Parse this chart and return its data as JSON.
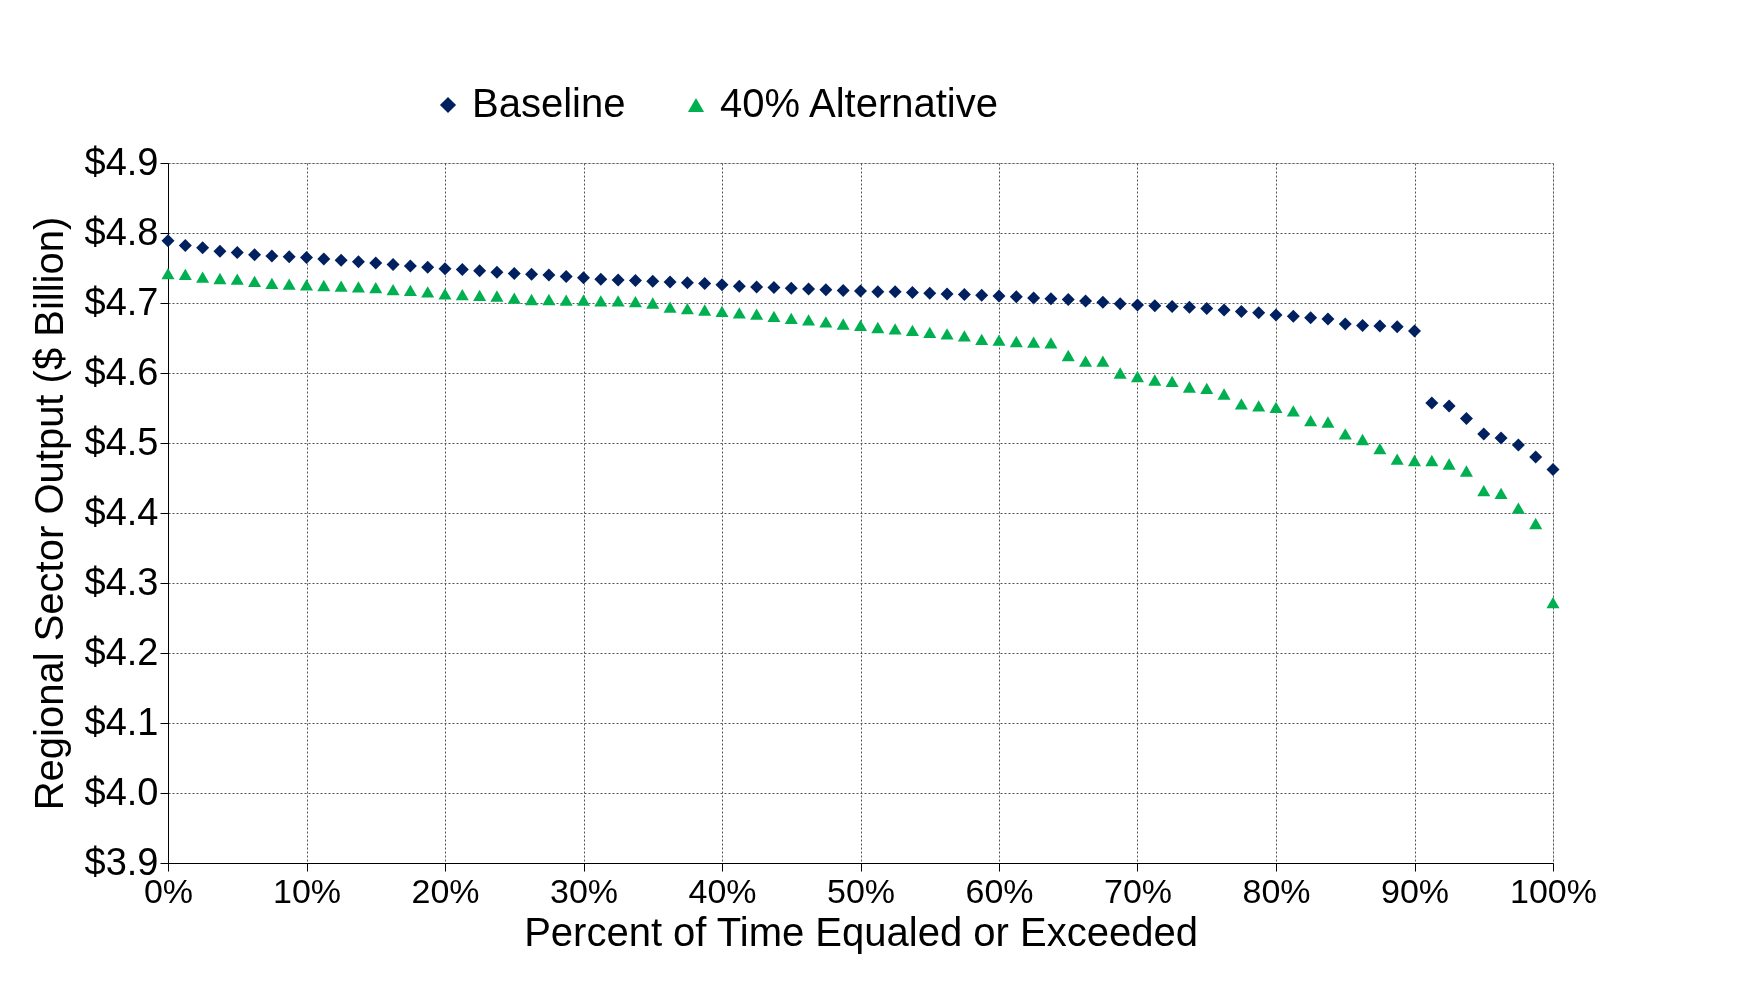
{
  "chart_data": {
    "type": "scatter",
    "xlabel": "Percent of Time Equaled or Exceeded",
    "ylabel": "Regional Sector Output ($ Billion)",
    "x": [
      0,
      1.25,
      2.5,
      3.75,
      5,
      6.25,
      7.5,
      8.75,
      10,
      11.25,
      12.5,
      13.75,
      15,
      16.25,
      17.5,
      18.75,
      20,
      21.25,
      22.5,
      23.75,
      25,
      26.25,
      27.5,
      28.75,
      30,
      31.25,
      32.5,
      33.75,
      35,
      36.25,
      37.5,
      38.75,
      40,
      41.25,
      42.5,
      43.75,
      45,
      46.25,
      47.5,
      48.75,
      50,
      51.25,
      52.5,
      53.75,
      55,
      56.25,
      57.5,
      58.75,
      60,
      61.25,
      62.5,
      63.75,
      65,
      66.25,
      67.5,
      68.75,
      70,
      71.25,
      72.5,
      73.75,
      75,
      76.25,
      77.5,
      78.75,
      80,
      81.25,
      82.5,
      83.75,
      85,
      86.25,
      87.5,
      88.75,
      90,
      91.25,
      92.5,
      93.75,
      95,
      96.25,
      97.5,
      98.75,
      100
    ],
    "series": [
      {
        "name": "Baseline",
        "color": "#002060",
        "marker": "diamond",
        "values": [
          4.789,
          4.782,
          4.779,
          4.774,
          4.772,
          4.769,
          4.767,
          4.766,
          4.765,
          4.763,
          4.761,
          4.759,
          4.757,
          4.755,
          4.753,
          4.751,
          4.749,
          4.748,
          4.746,
          4.744,
          4.742,
          4.741,
          4.74,
          4.738,
          4.736,
          4.734,
          4.733,
          4.732,
          4.731,
          4.73,
          4.729,
          4.728,
          4.726,
          4.724,
          4.723,
          4.722,
          4.721,
          4.72,
          4.719,
          4.718,
          4.717,
          4.716,
          4.716,
          4.715,
          4.714,
          4.713,
          4.712,
          4.711,
          4.71,
          4.709,
          4.707,
          4.706,
          4.705,
          4.703,
          4.701,
          4.699,
          4.697,
          4.696,
          4.695,
          4.694,
          4.692,
          4.69,
          4.688,
          4.686,
          4.683,
          4.681,
          4.679,
          4.677,
          4.67,
          4.668,
          4.667,
          4.666,
          4.66,
          4.557,
          4.553,
          4.535,
          4.513,
          4.507,
          4.497,
          4.48,
          4.462
        ]
      },
      {
        "name": "40% Alternative",
        "color": "#00b050",
        "marker": "triangle",
        "values": [
          4.742,
          4.741,
          4.737,
          4.735,
          4.734,
          4.731,
          4.728,
          4.727,
          4.726,
          4.725,
          4.724,
          4.723,
          4.722,
          4.719,
          4.718,
          4.716,
          4.713,
          4.712,
          4.711,
          4.71,
          4.707,
          4.705,
          4.705,
          4.704,
          4.704,
          4.703,
          4.703,
          4.702,
          4.7,
          4.694,
          4.692,
          4.69,
          4.688,
          4.686,
          4.684,
          4.681,
          4.678,
          4.676,
          4.673,
          4.67,
          4.668,
          4.665,
          4.663,
          4.661,
          4.658,
          4.656,
          4.653,
          4.648,
          4.647,
          4.645,
          4.644,
          4.643,
          4.625,
          4.617,
          4.617,
          4.6,
          4.595,
          4.59,
          4.588,
          4.58,
          4.578,
          4.57,
          4.556,
          4.553,
          4.551,
          4.546,
          4.532,
          4.53,
          4.513,
          4.505,
          4.492,
          4.477,
          4.475,
          4.475,
          4.47,
          4.46,
          4.432,
          4.428,
          4.407,
          4.385,
          4.272
        ]
      }
    ],
    "xlim": [
      0,
      100
    ],
    "xticks": [
      {
        "value": 0,
        "label": "0%"
      },
      {
        "value": 10,
        "label": "10%"
      },
      {
        "value": 20,
        "label": "20%"
      },
      {
        "value": 30,
        "label": "30%"
      },
      {
        "value": 40,
        "label": "40%"
      },
      {
        "value": 50,
        "label": "50%"
      },
      {
        "value": 60,
        "label": "60%"
      },
      {
        "value": 70,
        "label": "70%"
      },
      {
        "value": 80,
        "label": "80%"
      },
      {
        "value": 90,
        "label": "90%"
      },
      {
        "value": 100,
        "label": "100%"
      }
    ],
    "ylim": [
      3.9,
      4.9
    ],
    "yticks": [
      {
        "value": 3.9,
        "label": "$3.9"
      },
      {
        "value": 4.0,
        "label": "$4.0"
      },
      {
        "value": 4.1,
        "label": "$4.1"
      },
      {
        "value": 4.2,
        "label": "$4.2"
      },
      {
        "value": 4.3,
        "label": "$4.3"
      },
      {
        "value": 4.4,
        "label": "$4.4"
      },
      {
        "value": 4.5,
        "label": "$4.5"
      },
      {
        "value": 4.6,
        "label": "$4.6"
      },
      {
        "value": 4.7,
        "label": "$4.7"
      },
      {
        "value": 4.8,
        "label": "$4.8"
      },
      {
        "value": 4.9,
        "label": "$4.9"
      }
    ],
    "grid": true,
    "legend": "top"
  }
}
